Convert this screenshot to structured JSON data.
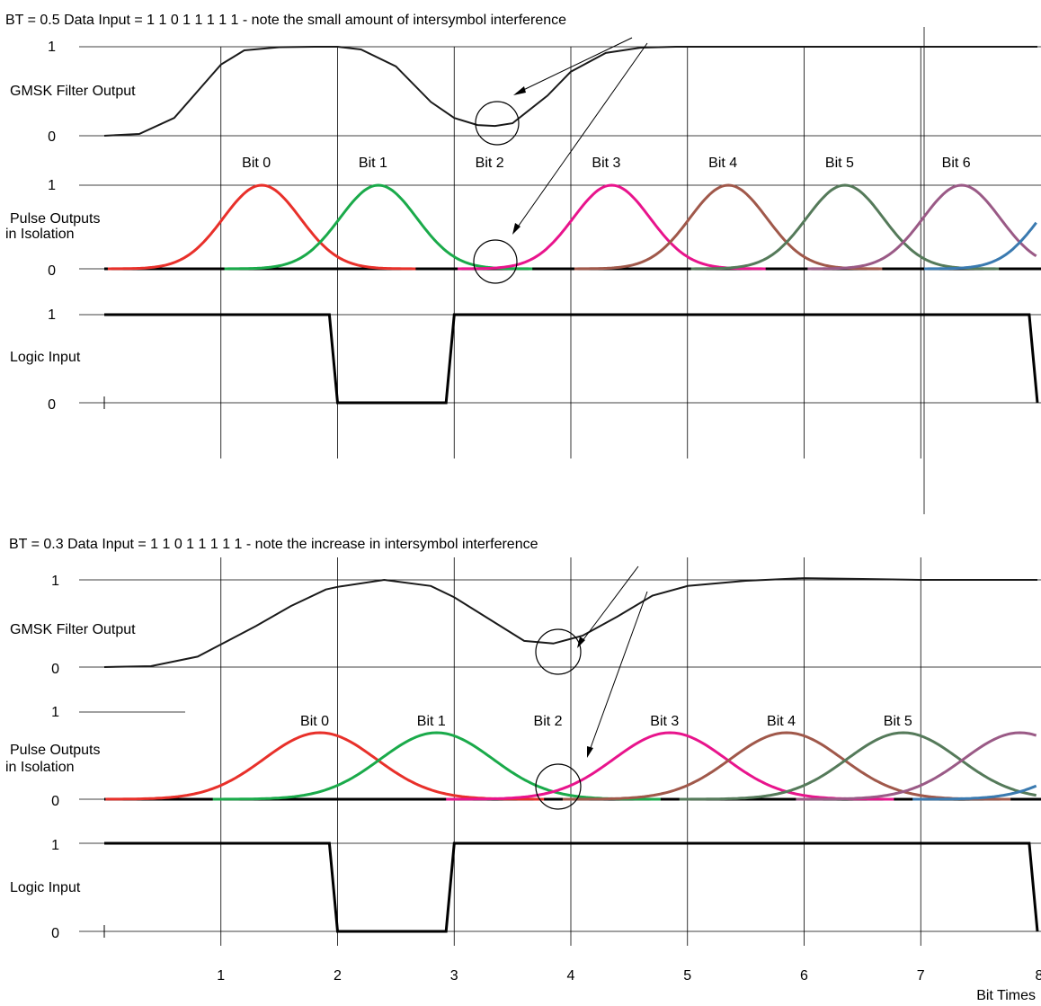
{
  "chart_data": [
    {
      "type": "line",
      "title": "BT = 0.5   Data Input = 1 1 0 1 1 1 1 1   - note the small amount of intersymbol interference",
      "bt": 0.5,
      "data_input": [
        1,
        1,
        0,
        1,
        1,
        1,
        1,
        1
      ],
      "xlabel": "",
      "xlim": [
        0,
        8
      ],
      "panels": [
        {
          "name": "gmsk",
          "label": "GMSK   Filter   Output",
          "ylim": [
            0,
            1
          ],
          "yticks": [
            "1",
            "0"
          ],
          "series": [
            {
              "x": [
                0,
                0.3,
                0.6,
                0.9,
                1.0,
                1.2,
                1.5,
                1.8,
                2.0,
                2.2,
                2.5,
                2.8,
                3.0,
                3.2,
                3.35,
                3.5,
                3.8,
                4.0,
                4.3,
                4.6,
                4.9,
                5.2,
                6.0,
                7.0,
                8.0
              ],
              "y": [
                0,
                0.02,
                0.2,
                0.65,
                0.8,
                0.96,
                0.995,
                1.0,
                1.0,
                0.97,
                0.78,
                0.38,
                0.2,
                0.12,
                0.11,
                0.14,
                0.45,
                0.72,
                0.93,
                0.99,
                1.0,
                1.0,
                1.0,
                1.0,
                1.0
              ]
            }
          ]
        },
        {
          "name": "pulses",
          "label_line1": "Pulse   Outputs",
          "label_line2": "in    Isolation",
          "ylim": [
            0,
            1
          ],
          "yticks": [
            "1",
            "0"
          ],
          "pulse_sigma": 0.33,
          "series": [
            {
              "name": "Bit  0",
              "center": 1.35,
              "amplitude": 1,
              "color": "#e8302a"
            },
            {
              "name": "Bit  1",
              "center": 2.35,
              "amplitude": 1,
              "color": "#1aaa4a"
            },
            {
              "name": "Bit  2",
              "center": 3.35,
              "amplitude": 0,
              "color": "#000000"
            },
            {
              "name": "Bit  3",
              "center": 4.35,
              "amplitude": 1,
              "color": "#e8148c"
            },
            {
              "name": "Bit  4",
              "center": 5.35,
              "amplitude": 1,
              "color": "#a0584a"
            },
            {
              "name": "Bit  5",
              "center": 6.35,
              "amplitude": 1,
              "color": "#557a5a"
            },
            {
              "name": "Bit  6",
              "center": 7.35,
              "amplitude": 1,
              "color": "#9a5a86"
            },
            {
              "name": "",
              "center": 8.35,
              "amplitude": 1,
              "color": "#3a7ab0"
            }
          ]
        },
        {
          "name": "logic",
          "label": "Logic    Input",
          "ylim": [
            0,
            1
          ],
          "yticks": [
            "1",
            "0"
          ],
          "series": [
            {
              "x": [
                0,
                1.93,
                2.0,
                2.93,
                3.0,
                7.93,
                8.0
              ],
              "y": [
                1,
                1,
                0,
                0,
                1,
                1,
                0
              ]
            }
          ]
        }
      ]
    },
    {
      "type": "line",
      "title": "BT = 0.3   Data Input = 1 1 0 1 1 1 1 1   - note the increase in intersymbol interference",
      "bt": 0.3,
      "data_input": [
        1,
        1,
        0,
        1,
        1,
        1,
        1,
        1
      ],
      "xlabel": "Bit    Times",
      "xlim": [
        0,
        8
      ],
      "xticks": [
        "1",
        "2",
        "3",
        "4",
        "5",
        "6",
        "7",
        "8"
      ],
      "panels": [
        {
          "name": "gmsk",
          "label": "GMSK   Filter   Output",
          "ylim": [
            0,
            1
          ],
          "yticks": [
            "1",
            "0"
          ],
          "series": [
            {
              "x": [
                0,
                0.4,
                0.8,
                1.0,
                1.3,
                1.6,
                1.9,
                2.0,
                2.4,
                2.8,
                3.0,
                3.3,
                3.6,
                3.85,
                4.1,
                4.4,
                4.7,
                5.0,
                5.5,
                6.0,
                6.5,
                7.0,
                8.0
              ],
              "y": [
                0,
                0.01,
                0.12,
                0.26,
                0.47,
                0.7,
                0.89,
                0.92,
                1.0,
                0.93,
                0.8,
                0.55,
                0.3,
                0.27,
                0.36,
                0.58,
                0.82,
                0.93,
                0.99,
                1.02,
                1.01,
                1.0,
                1.0
              ]
            }
          ]
        },
        {
          "name": "pulses",
          "label_line1": "Pulse   Outputs",
          "label_line2": "in    Isolation",
          "ylim": [
            0,
            1
          ],
          "yticks": [
            "1",
            "0"
          ],
          "pulse_sigma": 0.48,
          "series": [
            {
              "name": "Bit  0",
              "center": 1.85,
              "amplitude": 1,
              "color": "#e8302a"
            },
            {
              "name": "Bit  1",
              "center": 2.85,
              "amplitude": 1,
              "color": "#1aaa4a"
            },
            {
              "name": "Bit  2",
              "center": 3.85,
              "amplitude": 0,
              "color": "#000000"
            },
            {
              "name": "Bit  3",
              "center": 4.85,
              "amplitude": 1,
              "color": "#e8148c"
            },
            {
              "name": "Bit  4",
              "center": 5.85,
              "amplitude": 1,
              "color": "#a0584a"
            },
            {
              "name": "Bit  5",
              "center": 6.85,
              "amplitude": 1,
              "color": "#557a5a"
            },
            {
              "name": "",
              "center": 7.85,
              "amplitude": 1,
              "color": "#9a5a86"
            },
            {
              "name": "",
              "center": 8.85,
              "amplitude": 1,
              "color": "#3a7ab0"
            }
          ]
        },
        {
          "name": "logic",
          "label": "Logic    Input",
          "ylim": [
            0,
            1
          ],
          "yticks": [
            "1",
            "0"
          ],
          "series": [
            {
              "x": [
                0,
                1.93,
                2.0,
                2.93,
                3.0,
                7.93,
                8.0
              ],
              "y": [
                1,
                1,
                0,
                0,
                1,
                1,
                0
              ]
            }
          ]
        }
      ]
    }
  ]
}
